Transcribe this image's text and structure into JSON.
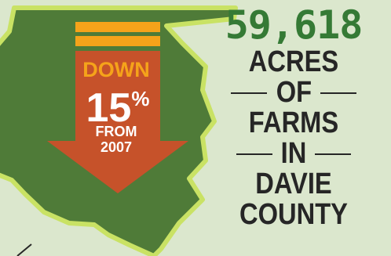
{
  "colors": {
    "background": "#dbe7cd",
    "county_fill": "#4f7b38",
    "county_outline": "#c9e264",
    "arrow": "#c6522a",
    "bars": "#f5a31a",
    "headline_number": "#357a35",
    "text": "#262626"
  },
  "arrow": {
    "direction_word": "DOWN",
    "percent": "15",
    "percent_sign": "%",
    "from_label": "FROM",
    "from_year": "2007"
  },
  "stat": {
    "number": "59,618",
    "lines": [
      "ACRES",
      "OF",
      "FARMS",
      "IN",
      "DAVIE",
      "COUNTY"
    ]
  }
}
